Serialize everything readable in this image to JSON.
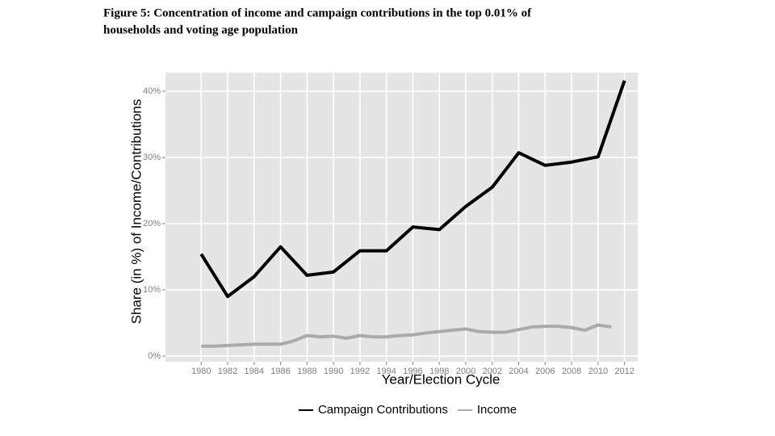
{
  "chart_data": {
    "type": "line",
    "title": [
      "Figure 5:  Concentration of income and campaign contributions in the top 0.01% of",
      "households and voting age population"
    ],
    "x_label": "Year/Election Cycle",
    "y_label": "Share (in %) of Income/Contributions",
    "xlim": [
      1977.3,
      2013.0
    ],
    "xticks": [
      1980,
      1982,
      1984,
      1986,
      1988,
      1990,
      1992,
      1994,
      1996,
      1998,
      2000,
      2002,
      2004,
      2006,
      2008,
      2010,
      2012
    ],
    "ylim": [
      -0.85,
      42.8
    ],
    "yticks": [
      {
        "value": 0,
        "label": "0%"
      },
      {
        "value": 10,
        "label": "10%"
      },
      {
        "value": 20,
        "label": "20%"
      },
      {
        "value": 30,
        "label": "30%"
      },
      {
        "value": 40,
        "label": "40%"
      }
    ],
    "grid": true,
    "legend": "bottom",
    "series": [
      {
        "name": "Campaign Contributions",
        "color": "#000000",
        "x": [
          1980,
          1982,
          1984,
          1986,
          1988,
          1990,
          1992,
          1994,
          1996,
          1998,
          2000,
          2002,
          2004,
          2006,
          2008,
          2010,
          2012
        ],
        "values": [
          15.4,
          9.0,
          12.0,
          16.5,
          12.2,
          12.7,
          15.9,
          15.9,
          19.5,
          19.1,
          22.6,
          25.5,
          30.7,
          28.8,
          29.3,
          30.1,
          41.6
        ]
      },
      {
        "name": "Income",
        "color": "#aaaaaa",
        "x": [
          1980,
          1981,
          1982,
          1983,
          1984,
          1985,
          1986,
          1987,
          1988,
          1989,
          1990,
          1991,
          1992,
          1993,
          1994,
          1995,
          1996,
          1997,
          1998,
          1999,
          2000,
          2001,
          2002,
          2003,
          2004,
          2005,
          2006,
          2007,
          2008,
          2009,
          2010,
          2011
        ],
        "values": [
          1.5,
          1.5,
          1.6,
          1.7,
          1.8,
          1.8,
          1.8,
          2.3,
          3.1,
          2.9,
          3.0,
          2.7,
          3.1,
          2.9,
          2.9,
          3.1,
          3.2,
          3.5,
          3.7,
          3.9,
          4.1,
          3.7,
          3.6,
          3.6,
          4.0,
          4.4,
          4.5,
          4.5,
          4.3,
          3.9,
          4.7,
          4.4
        ]
      }
    ]
  }
}
